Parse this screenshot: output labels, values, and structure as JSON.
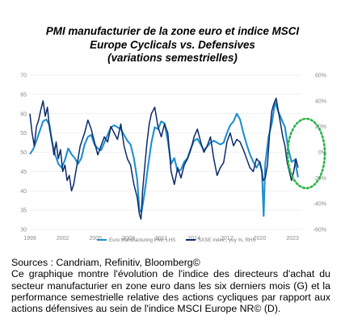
{
  "title_lines": [
    "PMI manufacturier de la zone euro et indice MSCI",
    "Europe Cyclicals vs. Defensives",
    "(variations semestrielles)"
  ],
  "caption": {
    "source": "Sources : Candriam, Refinitiv, Bloomberg©",
    "description": "Ce graphique montre l'évolution de l'indice des directeurs d'achat du secteur manufacturier en zone euro dans les six derniers mois (G) et la performance semestrielle relative des actions cycliques par rapport aux actions défensives au sein de l'indice MSCI Europe NR© (D)."
  },
  "colors": {
    "pmi": "#1f8fd0",
    "sxse": "#0b2a6b",
    "circle": "#2db34a",
    "grid": "#e3e3e3"
  },
  "chart_data": {
    "type": "line",
    "x_ticks": [
      "1999",
      "2002",
      "2005",
      "2008",
      "2011",
      "2014",
      "2017",
      "2020",
      "2023"
    ],
    "x_range": [
      1999,
      2023.8
    ],
    "y_left": {
      "ticks": [
        "70",
        "65",
        "60",
        "55",
        "50",
        "45",
        "40",
        "35",
        "30"
      ],
      "range": [
        30,
        70
      ]
    },
    "y_right": {
      "ticks": [
        "60%",
        "40%",
        "20%",
        "0%",
        "-20%",
        "-40%",
        "-60%"
      ],
      "range": [
        -60,
        60
      ]
    },
    "grid": "horizontal",
    "legend_position": "bottom",
    "annotation": "dotted-green-circle-around-2022-2023",
    "series": [
      {
        "name": "Euro Manufacturing PMI, LHS",
        "axis": "left",
        "x": [
          1999.0,
          1999.3,
          1999.6,
          1999.9,
          2000.2,
          2000.5,
          2000.8,
          2001.0,
          2001.3,
          2001.6,
          2001.9,
          2002.2,
          2002.5,
          2002.8,
          2003.1,
          2003.4,
          2003.7,
          2004.0,
          2004.3,
          2004.6,
          2004.9,
          2005.2,
          2005.5,
          2005.8,
          2006.1,
          2006.4,
          2006.7,
          2007.0,
          2007.3,
          2007.6,
          2007.9,
          2008.2,
          2008.5,
          2008.8,
          2009.0,
          2009.2,
          2009.5,
          2009.8,
          2010.1,
          2010.4,
          2010.7,
          2011.0,
          2011.3,
          2011.6,
          2011.9,
          2012.2,
          2012.5,
          2012.8,
          2013.1,
          2013.4,
          2013.7,
          2014.0,
          2014.3,
          2014.6,
          2014.9,
          2015.2,
          2015.5,
          2015.8,
          2016.1,
          2016.4,
          2016.7,
          2017.0,
          2017.3,
          2017.6,
          2017.9,
          2018.2,
          2018.5,
          2018.8,
          2019.1,
          2019.4,
          2019.7,
          2020.0,
          2020.2,
          2020.35,
          2020.5,
          2020.8,
          2021.1,
          2021.4,
          2021.7,
          2022.0,
          2022.3,
          2022.6,
          2022.9,
          2023.2,
          2023.5
        ],
        "values": [
          49.5,
          50.8,
          53.0,
          55.5,
          58.0,
          58.5,
          57.0,
          53.0,
          49.5,
          47.0,
          46.0,
          48.0,
          51.0,
          49.5,
          48.5,
          47.0,
          48.5,
          52.0,
          54.0,
          54.5,
          52.0,
          51.0,
          50.5,
          52.5,
          54.5,
          56.5,
          57.0,
          56.5,
          56.0,
          54.5,
          53.0,
          52.0,
          48.5,
          43.0,
          35.0,
          34.5,
          40.0,
          46.5,
          52.5,
          56.5,
          56.0,
          58.0,
          57.5,
          53.0,
          47.0,
          48.5,
          45.0,
          45.5,
          47.5,
          48.5,
          51.0,
          53.0,
          53.5,
          52.0,
          50.5,
          51.5,
          52.5,
          53.0,
          52.5,
          52.0,
          52.5,
          55.0,
          57.0,
          58.0,
          60.0,
          58.5,
          55.0,
          52.0,
          49.5,
          47.5,
          46.0,
          47.5,
          45.0,
          33.5,
          47.0,
          54.0,
          57.5,
          63.0,
          60.5,
          58.5,
          56.5,
          51.0,
          47.5,
          48.0,
          43.5
        ]
      },
      {
        "name": "SXSE index , yoy %, RHS",
        "axis": "right",
        "x": [
          1999.0,
          1999.2,
          1999.4,
          1999.6,
          1999.8,
          2000.0,
          2000.2,
          2000.4,
          2000.6,
          2000.8,
          2001.0,
          2001.2,
          2001.4,
          2001.6,
          2001.8,
          2002.0,
          2002.2,
          2002.4,
          2002.6,
          2002.8,
          2003.0,
          2003.2,
          2003.4,
          2003.6,
          2003.8,
          2004.0,
          2004.3,
          2004.6,
          2004.9,
          2005.2,
          2005.5,
          2005.8,
          2006.1,
          2006.4,
          2006.7,
          2007.0,
          2007.3,
          2007.6,
          2007.9,
          2008.2,
          2008.5,
          2008.8,
          2009.0,
          2009.15,
          2009.3,
          2009.5,
          2009.7,
          2009.9,
          2010.1,
          2010.4,
          2010.7,
          2011.0,
          2011.3,
          2011.6,
          2011.9,
          2012.2,
          2012.5,
          2012.8,
          2013.1,
          2013.4,
          2013.7,
          2014.0,
          2014.3,
          2014.6,
          2014.9,
          2015.2,
          2015.5,
          2015.8,
          2016.1,
          2016.4,
          2016.7,
          2017.0,
          2017.3,
          2017.6,
          2017.9,
          2018.2,
          2018.5,
          2018.8,
          2019.1,
          2019.4,
          2019.7,
          2020.0,
          2020.2,
          2020.3,
          2020.5,
          2020.7,
          2020.9,
          2021.1,
          2021.3,
          2021.5,
          2021.7,
          2021.9,
          2022.1,
          2022.3,
          2022.5,
          2022.7,
          2022.9,
          2023.1,
          2023.3,
          2023.5
        ],
        "values": [
          30,
          15,
          5,
          20,
          25,
          33,
          40,
          28,
          35,
          18,
          10,
          -2,
          8,
          -5,
          2,
          -15,
          -10,
          -22,
          -18,
          -30,
          -25,
          -15,
          -5,
          5,
          10,
          15,
          25,
          18,
          8,
          -2,
          5,
          12,
          8,
          20,
          15,
          10,
          22,
          5,
          -5,
          -10,
          -25,
          -35,
          -48,
          -52,
          -30,
          -10,
          8,
          22,
          30,
          35,
          20,
          12,
          22,
          15,
          -15,
          -25,
          -12,
          -20,
          -10,
          -5,
          2,
          12,
          18,
          8,
          0,
          5,
          12,
          -5,
          -18,
          -12,
          -8,
          8,
          15,
          5,
          10,
          8,
          2,
          -5,
          -12,
          -15,
          -5,
          -8,
          -15,
          -22,
          -20,
          -10,
          15,
          32,
          38,
          42,
          32,
          22,
          12,
          5,
          -8,
          -15,
          -22,
          -15,
          -5,
          -12
        ]
      }
    ]
  }
}
